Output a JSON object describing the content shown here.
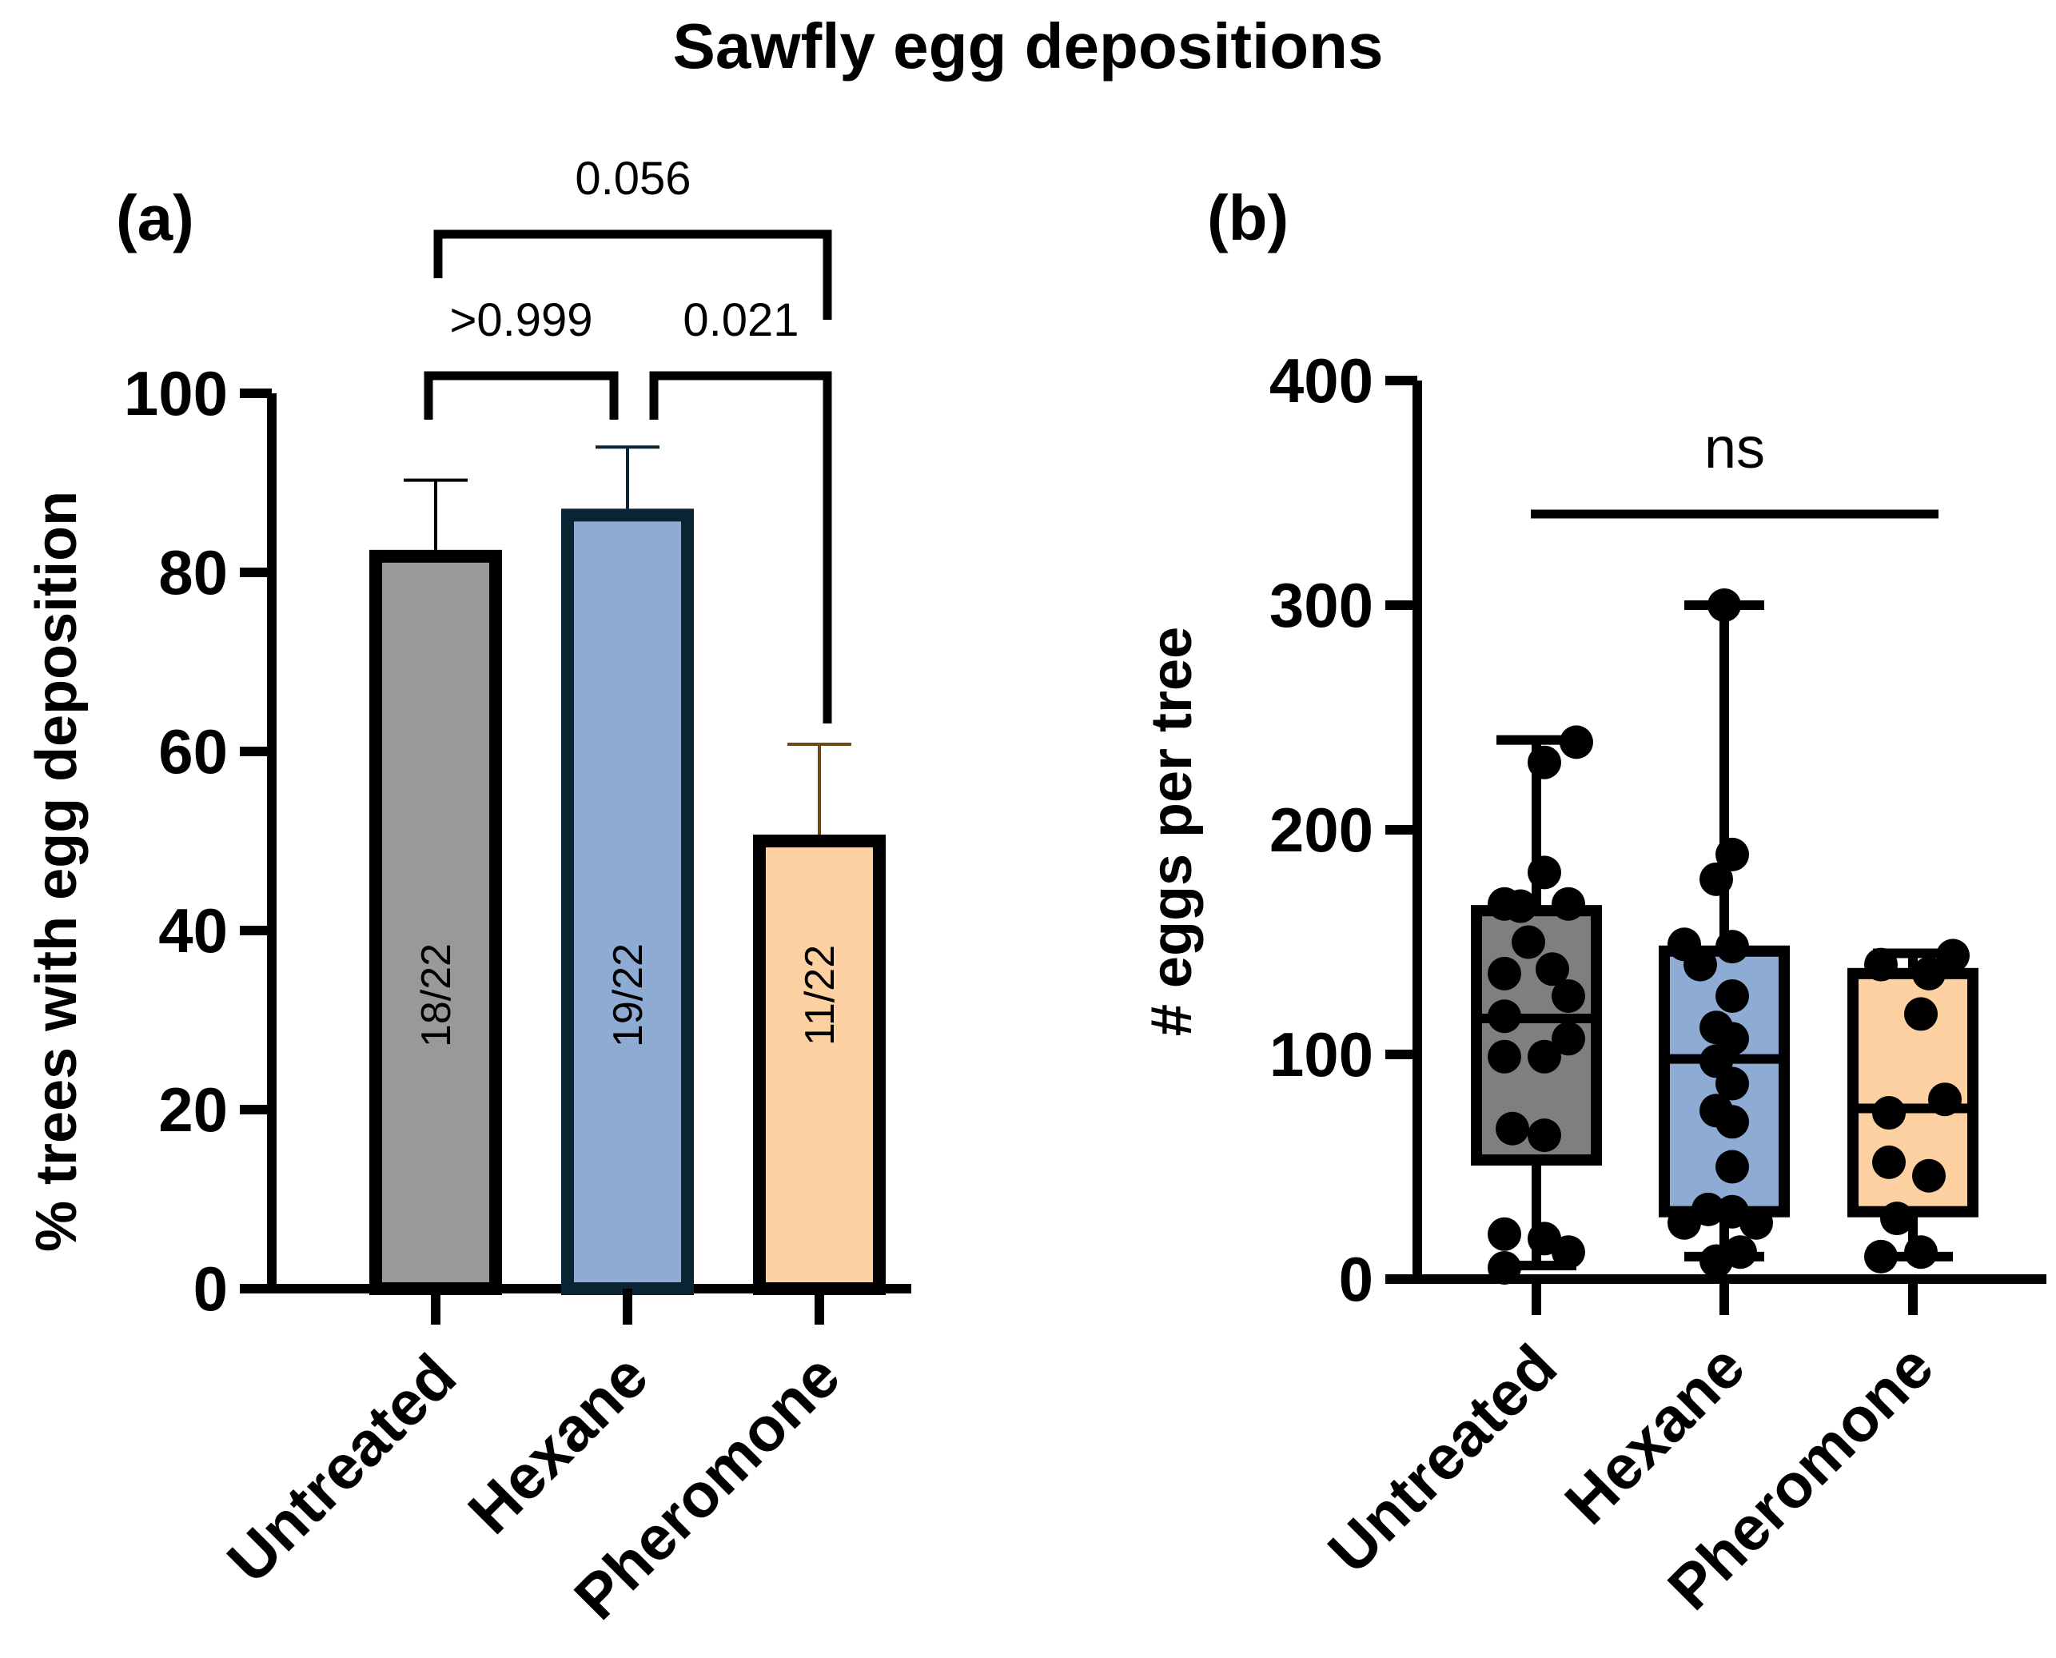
{
  "figure_title": "Sawfly egg depositions",
  "chart_data": [
    {
      "panel": "(a)",
      "type": "bar",
      "ylabel": "% trees with egg deposition",
      "xlabel": "",
      "ylim": [
        0,
        100
      ],
      "yticks": [
        0,
        20,
        40,
        60,
        80,
        100
      ],
      "categories": [
        "Untreated",
        "Hexane",
        "Pheromone"
      ],
      "values": [
        81.8,
        86.4,
        50.0
      ],
      "error_upper": [
        90.3,
        94.0,
        60.8
      ],
      "bar_labels": [
        "18/22",
        "19/22",
        "11/22"
      ],
      "colors": {
        "fill": [
          "#999999",
          "#8eabd3",
          "#fdd0a2"
        ],
        "edge": [
          "#000000",
          "#0a2433",
          "#000000"
        ],
        "error": [
          "#000000",
          "#0a2433",
          "#6b4a15"
        ]
      },
      "comparisons": [
        {
          "groups": [
            "Untreated",
            "Hexane"
          ],
          "p": ">0.999"
        },
        {
          "groups": [
            "Hexane",
            "Pheromone"
          ],
          "p": "0.021"
        },
        {
          "groups": [
            "Untreated",
            "Pheromone"
          ],
          "p": "0.056"
        }
      ]
    },
    {
      "panel": "(b)",
      "type": "box",
      "ylabel": "# eggs per tree",
      "xlabel": "",
      "ylim": [
        0,
        400
      ],
      "yticks": [
        0,
        100,
        200,
        300,
        400
      ],
      "categories": [
        "Untreated",
        "Hexane",
        "Pheromone"
      ],
      "boxes": [
        {
          "min": 6,
          "q1": 53,
          "median": 116,
          "q3": 164,
          "max": 240,
          "fill": "#7f7f7f"
        },
        {
          "min": 10,
          "q1": 30,
          "median": 98,
          "q3": 146,
          "max": 300,
          "fill": "#8eabd3"
        },
        {
          "min": 10,
          "q1": 30,
          "median": 76,
          "q3": 136,
          "max": 145,
          "fill": "#fdd0a2"
        }
      ],
      "points": [
        [
          [
            -0.2,
            5
          ],
          [
            -0.2,
            20
          ],
          [
            0.05,
            18
          ],
          [
            0.2,
            12
          ],
          [
            -0.15,
            67
          ],
          [
            0.05,
            64
          ],
          [
            -0.2,
            99
          ],
          [
            0.05,
            99
          ],
          [
            -0.2,
            117
          ],
          [
            0.2,
            107
          ],
          [
            -0.2,
            136
          ],
          [
            0.1,
            138
          ],
          [
            0.2,
            126
          ],
          [
            -0.05,
            150
          ],
          [
            -0.1,
            166
          ],
          [
            0.2,
            167
          ],
          [
            0.05,
            181
          ],
          [
            -0.2,
            167
          ],
          [
            0.05,
            230
          ],
          [
            0.25,
            239
          ]
        ],
        [
          [
            -0.05,
            8
          ],
          [
            0.1,
            12
          ],
          [
            -0.25,
            25
          ],
          [
            0.2,
            25
          ],
          [
            0.05,
            30
          ],
          [
            -0.1,
            31
          ],
          [
            0.05,
            50
          ],
          [
            0.05,
            70
          ],
          [
            -0.05,
            75
          ],
          [
            0.05,
            87
          ],
          [
            -0.05,
            97
          ],
          [
            0.05,
            107
          ],
          [
            -0.05,
            112
          ],
          [
            0.05,
            126
          ],
          [
            -0.15,
            140
          ],
          [
            0.05,
            148
          ],
          [
            -0.25,
            149
          ],
          [
            -0.05,
            178
          ],
          [
            0.05,
            189
          ],
          [
            0,
            300
          ]
        ],
        [
          [
            -0.2,
            10
          ],
          [
            0.05,
            12
          ],
          [
            -0.1,
            27
          ],
          [
            -0.15,
            52
          ],
          [
            0.1,
            46
          ],
          [
            0.2,
            80
          ],
          [
            -0.15,
            74
          ],
          [
            0.05,
            118
          ],
          [
            -0.2,
            140
          ],
          [
            0.25,
            144
          ],
          [
            0.1,
            136
          ]
        ]
      ],
      "significance": {
        "groups": [
          "Untreated",
          "Pheromone"
        ],
        "label": "ns"
      }
    }
  ]
}
